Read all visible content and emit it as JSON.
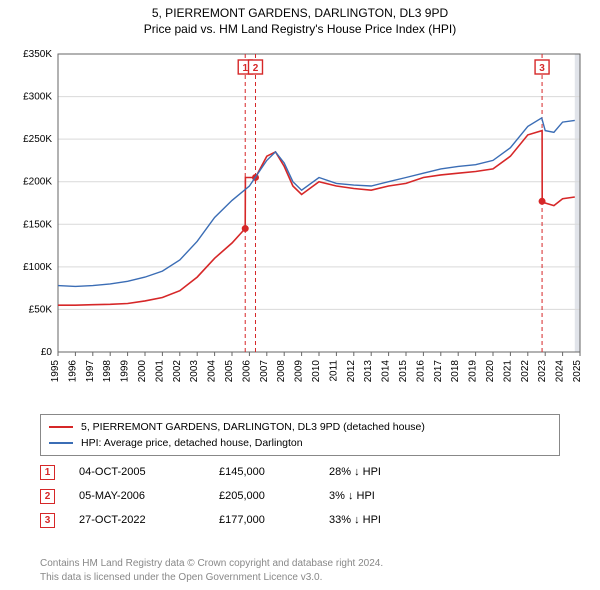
{
  "title": {
    "address": "5, PIERREMONT GARDENS, DARLINGTON, DL3 9PD",
    "subtitle": "Price paid vs. HM Land Registry's House Price Index (HPI)"
  },
  "chart": {
    "type": "line",
    "background_color": "#ffffff",
    "grid_color": "#d9d9d9",
    "axis_color": "#666666",
    "tick_font_size": 10,
    "y": {
      "min": 0,
      "max": 350000,
      "step": 50000,
      "tick_labels": [
        "£0",
        "£50K",
        "£100K",
        "£150K",
        "£200K",
        "£250K",
        "£300K",
        "£350K"
      ]
    },
    "x": {
      "min": 1995,
      "max": 2025,
      "step": 1,
      "tick_labels": [
        "1995",
        "1996",
        "1997",
        "1998",
        "1999",
        "2000",
        "2001",
        "2002",
        "2003",
        "2004",
        "2005",
        "2006",
        "2007",
        "2008",
        "2009",
        "2010",
        "2011",
        "2012",
        "2013",
        "2014",
        "2015",
        "2016",
        "2017",
        "2018",
        "2019",
        "2020",
        "2021",
        "2022",
        "2023",
        "2024",
        "2025"
      ]
    },
    "future_band": {
      "from_year": 2024.7,
      "to_year": 2025,
      "fill": "#e1e4ea"
    },
    "series": [
      {
        "name": "property",
        "label": "5, PIERREMONT GARDENS, DARLINGTON, DL3 9PD (detached house)",
        "color": "#d62728",
        "width": 1.6,
        "points": [
          [
            1995,
            55000
          ],
          [
            1996,
            55000
          ],
          [
            1997,
            55500
          ],
          [
            1998,
            56000
          ],
          [
            1999,
            57000
          ],
          [
            2000,
            60000
          ],
          [
            2001,
            64000
          ],
          [
            2002,
            72000
          ],
          [
            2003,
            88000
          ],
          [
            2004,
            110000
          ],
          [
            2005,
            128000
          ],
          [
            2005.76,
            145000
          ],
          [
            2005.77,
            205000
          ],
          [
            2006.35,
            205000
          ],
          [
            2007,
            230000
          ],
          [
            2007.5,
            235000
          ],
          [
            2008,
            218000
          ],
          [
            2008.5,
            195000
          ],
          [
            2009,
            185000
          ],
          [
            2010,
            200000
          ],
          [
            2011,
            195000
          ],
          [
            2012,
            192000
          ],
          [
            2013,
            190000
          ],
          [
            2014,
            195000
          ],
          [
            2015,
            198000
          ],
          [
            2016,
            205000
          ],
          [
            2017,
            208000
          ],
          [
            2018,
            210000
          ],
          [
            2019,
            212000
          ],
          [
            2020,
            215000
          ],
          [
            2021,
            230000
          ],
          [
            2022,
            255000
          ],
          [
            2022.82,
            260000
          ],
          [
            2022.83,
            177000
          ],
          [
            2023,
            175000
          ],
          [
            2023.5,
            172000
          ],
          [
            2024,
            180000
          ],
          [
            2024.7,
            182000
          ]
        ]
      },
      {
        "name": "hpi",
        "label": "HPI: Average price, detached house, Darlington",
        "color": "#3b6db5",
        "width": 1.4,
        "points": [
          [
            1995,
            78000
          ],
          [
            1996,
            77000
          ],
          [
            1997,
            78000
          ],
          [
            1998,
            80000
          ],
          [
            1999,
            83000
          ],
          [
            2000,
            88000
          ],
          [
            2001,
            95000
          ],
          [
            2002,
            108000
          ],
          [
            2003,
            130000
          ],
          [
            2004,
            158000
          ],
          [
            2005,
            178000
          ],
          [
            2006,
            195000
          ],
          [
            2007,
            225000
          ],
          [
            2007.5,
            235000
          ],
          [
            2008,
            222000
          ],
          [
            2008.5,
            200000
          ],
          [
            2009,
            190000
          ],
          [
            2010,
            205000
          ],
          [
            2011,
            198000
          ],
          [
            2012,
            196000
          ],
          [
            2013,
            195000
          ],
          [
            2014,
            200000
          ],
          [
            2015,
            205000
          ],
          [
            2016,
            210000
          ],
          [
            2017,
            215000
          ],
          [
            2018,
            218000
          ],
          [
            2019,
            220000
          ],
          [
            2020,
            225000
          ],
          [
            2021,
            240000
          ],
          [
            2022,
            265000
          ],
          [
            2022.8,
            275000
          ],
          [
            2023,
            260000
          ],
          [
            2023.5,
            258000
          ],
          [
            2024,
            270000
          ],
          [
            2024.7,
            272000
          ]
        ]
      }
    ],
    "event_lines": [
      {
        "id": 1,
        "year": 2005.76,
        "y": 145000,
        "color": "#d62728",
        "dash": "4,3"
      },
      {
        "id": 2,
        "year": 2006.35,
        "y": 205000,
        "color": "#d62728",
        "dash": "4,3"
      },
      {
        "id": 3,
        "year": 2022.82,
        "y": 177000,
        "color": "#d62728",
        "dash": "4,3"
      }
    ]
  },
  "legend": {
    "rows": [
      {
        "color": "#d62728",
        "label": "5, PIERREMONT GARDENS, DARLINGTON, DL3 9PD (detached house)"
      },
      {
        "color": "#3b6db5",
        "label": "HPI: Average price, detached house, Darlington"
      }
    ]
  },
  "transactions": {
    "marker_color": "#d62728",
    "rows": [
      {
        "num": "1",
        "date": "04-OCT-2005",
        "price": "£145,000",
        "delta": "28% ↓ HPI"
      },
      {
        "num": "2",
        "date": "05-MAY-2006",
        "price": "£205,000",
        "delta": "3% ↓ HPI"
      },
      {
        "num": "3",
        "date": "27-OCT-2022",
        "price": "£177,000",
        "delta": "33% ↓ HPI"
      }
    ]
  },
  "footer": {
    "line1": "Contains HM Land Registry data © Crown copyright and database right 2024.",
    "line2": "This data is licensed under the Open Government Licence v3.0."
  }
}
